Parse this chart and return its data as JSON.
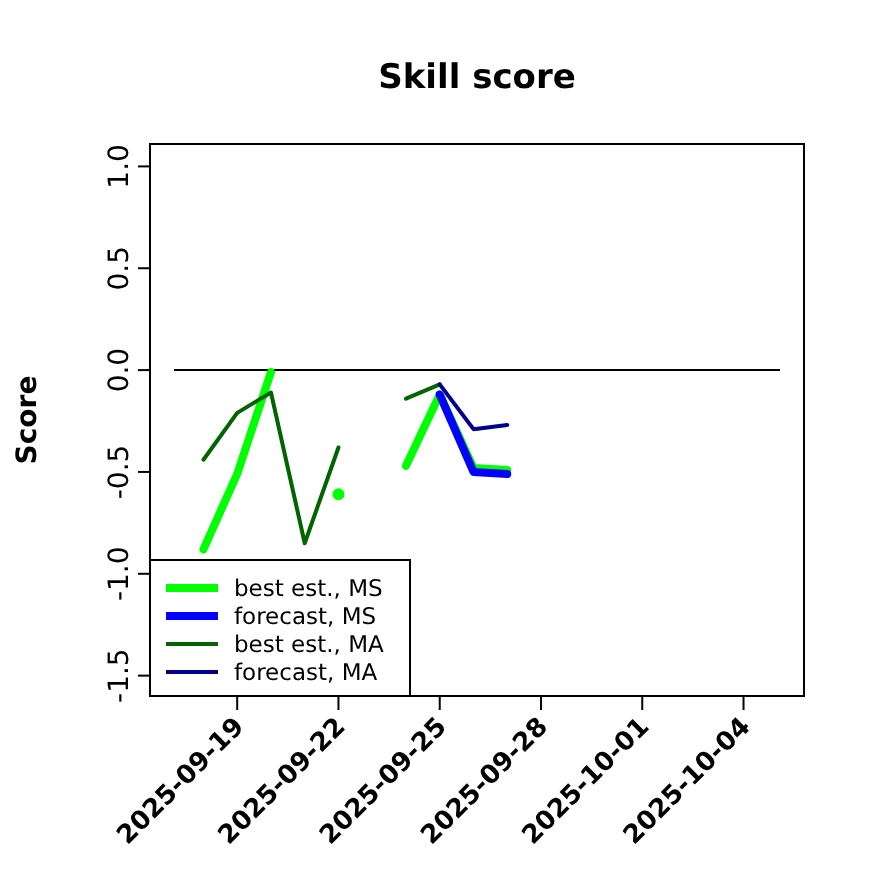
{
  "chart_data": {
    "type": "line",
    "title": "Skill score",
    "ylabel": "Score",
    "x": [
      "2025-09-18",
      "2025-09-19",
      "2025-09-20",
      "2025-09-21",
      "2025-09-22",
      "2025-09-23",
      "2025-09-24",
      "2025-09-25",
      "2025-09-26",
      "2025-09-27"
    ],
    "series": [
      {
        "name": "best est., MS",
        "color": "#00ff00",
        "values": [
          -0.88,
          -0.51,
          -0.01,
          null,
          -0.61,
          null,
          -0.47,
          -0.12,
          -0.48,
          -0.49
        ]
      },
      {
        "name": "forecast, MS",
        "color": "#0000ff",
        "values": [
          null,
          null,
          null,
          null,
          null,
          null,
          null,
          -0.12,
          -0.5,
          -0.51
        ]
      },
      {
        "name": "best est., MA",
        "color": "#006400",
        "values": [
          -0.44,
          -0.21,
          -0.11,
          -0.85,
          -0.38,
          null,
          -0.14,
          -0.07,
          null,
          null
        ]
      },
      {
        "name": "forecast, MA",
        "color": "#00008b",
        "values": [
          null,
          null,
          null,
          null,
          null,
          null,
          null,
          -0.07,
          -0.29,
          -0.27
        ]
      }
    ],
    "xlim": [
      "2025-09-16T10:00",
      "2025-10-05T19:00"
    ],
    "xticks": [
      "2025-09-19",
      "2025-09-22",
      "2025-09-25",
      "2025-09-28",
      "2025-10-01",
      "2025-10-04"
    ],
    "ylim": [
      -1.6,
      1.11
    ],
    "yticks": [
      {
        "value": -1.5,
        "label": "-1.5"
      },
      {
        "value": -1,
        "label": "-1.0"
      },
      {
        "value": -0.5,
        "label": "-0.5"
      },
      {
        "value": 0,
        "label": "0.0"
      },
      {
        "value": 0.5,
        "label": "0.5"
      },
      {
        "value": 1,
        "label": "1.0"
      }
    ],
    "ref_lines": [
      {
        "axis": "y",
        "value": 0,
        "color": "#000000"
      }
    ],
    "legend": "bottom left",
    "grid": false,
    "marker": "none",
    "line_style": "solid"
  }
}
